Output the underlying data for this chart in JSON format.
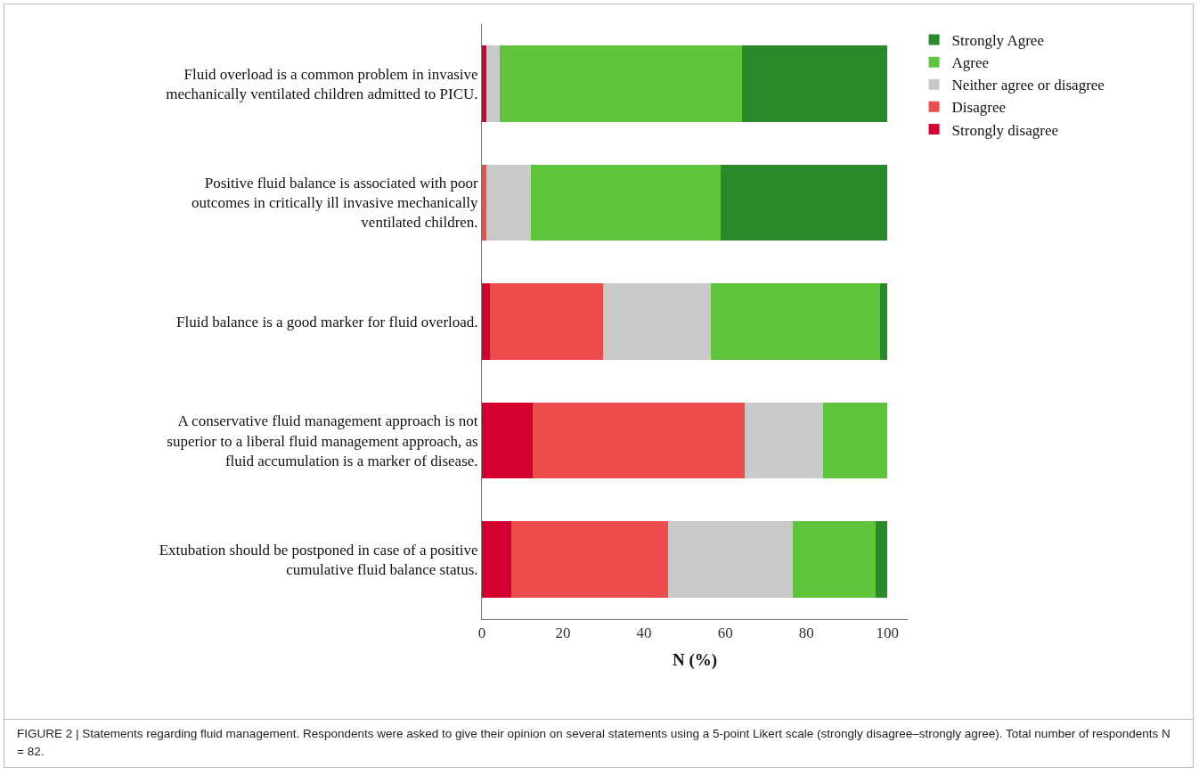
{
  "chart_data": {
    "type": "bar",
    "orientation": "horizontal",
    "stacked": true,
    "categories": [
      "Fluid overload is a common problem in invasive mechanically ventilated children admitted to PICU.",
      "Positive fluid balance is associated with poor outcomes in critically ill invasive mechanically ventilated children.",
      "Fluid balance is a good marker for fluid overload.",
      "A conservative fluid management approach is not superior to a liberal fluid management approach, as fluid accumulation is a marker of disease.",
      "Extubation should be postponed in case of a positive cumulative fluid balance status."
    ],
    "series": [
      {
        "name": "Strongly disagree",
        "color": "#d50032",
        "values": [
          1.2,
          0,
          2.0,
          12.6,
          7.3
        ]
      },
      {
        "name": "Disagree",
        "color": "#ec4c4c",
        "values": [
          0,
          1.2,
          27.9,
          52.3,
          38.5
        ]
      },
      {
        "name": "Neither agree or disagree",
        "color": "#c9c9c9",
        "values": [
          3.1,
          10.8,
          26.6,
          19.3,
          30.9
        ]
      },
      {
        "name": "Agree",
        "color": "#5ec43a",
        "values": [
          59.8,
          46.8,
          41.6,
          15.8,
          20.4
        ]
      },
      {
        "name": "Strongly Agree",
        "color": "#2a8a2a",
        "values": [
          35.9,
          41.2,
          1.9,
          0,
          2.9
        ]
      }
    ],
    "xlabel": "N (%)",
    "xlim": [
      0,
      105
    ],
    "xticks": [
      0,
      20,
      40,
      60,
      80,
      100
    ],
    "grid": false,
    "legend": "top right",
    "annotations": [
      "FIGURE 2 | Statements regarding fluid management. Respondents were asked to give their opinion on several statements using a 5-point Likert scale (strongly disagree–strongly agree). Total number of respondents N = 82."
    ]
  }
}
